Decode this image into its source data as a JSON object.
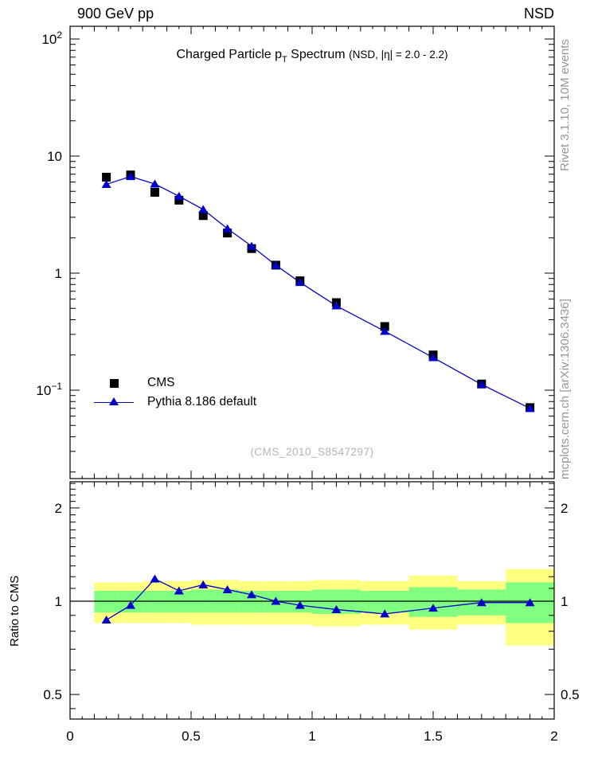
{
  "header": {
    "left": "900 GeV pp",
    "right": "NSD"
  },
  "main_title": {
    "pre": "Charged Particle p",
    "sub": "T",
    "mid": " Spectrum ",
    "paren": "(NSD, |η| = 2.0 - 2.2)"
  },
  "watermark": "(CMS_2010_S8547297)",
  "side_notes": {
    "top_rotated": "Rivet 3.1.10, 10M events",
    "bottom_rotated": "mcplots.cern.ch [arXiv:1306.3436]"
  },
  "legend": {
    "items": [
      {
        "label": "CMS",
        "marker": "filled-square",
        "color": "#000000"
      },
      {
        "label": "Pythia 8.186 default",
        "marker": "triangle-on-line",
        "color": "#0000cc"
      }
    ]
  },
  "ratio_axis_label": "Ratio to CMS",
  "colors": {
    "mc_blue": "#0000cc",
    "data_black": "#000000",
    "band_yellow": "#ffff80",
    "band_green": "#80ff80",
    "gray_text": "#969696",
    "watermark_gray": "#b4b4b4",
    "frame": "#000000"
  },
  "chart_data": [
    {
      "type": "line",
      "panel": "spectrum",
      "title": "Charged Particle pT Spectrum (NSD, |eta| = 2.0 - 2.2)",
      "xlabel": "",
      "ylabel": "",
      "xlim": [
        0,
        2
      ],
      "yscale": "log",
      "ylim": [
        0.0176,
        128
      ],
      "grid": false,
      "legend_position": "left-middle",
      "x": [
        0.15,
        0.25,
        0.35,
        0.45,
        0.55,
        0.65,
        0.75,
        0.85,
        0.95,
        1.1,
        1.3,
        1.5,
        1.7,
        1.9
      ],
      "series": [
        {
          "name": "CMS",
          "marker": "filled-square",
          "color": "#000000",
          "line": false,
          "values": [
            6.6,
            6.9,
            4.9,
            4.2,
            3.1,
            2.2,
            1.62,
            1.17,
            0.86,
            0.56,
            0.35,
            0.2,
            0.113,
            0.071
          ]
        },
        {
          "name": "Pythia 8.186 default",
          "marker": "filled-triangle",
          "color": "#0000cc",
          "line": true,
          "values": [
            5.74,
            6.69,
            5.78,
            4.54,
            3.5,
            2.4,
            1.7,
            1.17,
            0.834,
            0.526,
            0.319,
            0.19,
            0.112,
            0.07
          ]
        }
      ],
      "xticks": [
        {
          "v": 0,
          "label": "0"
        },
        {
          "v": 0.5,
          "label": "0.5"
        },
        {
          "v": 1,
          "label": "1"
        },
        {
          "v": 1.5,
          "label": "1.5"
        },
        {
          "v": 2,
          "label": "2"
        }
      ],
      "yticks": [
        {
          "v": 100,
          "base": "10",
          "sup": "2"
        },
        {
          "v": 10,
          "base": "10",
          "sup": ""
        },
        {
          "v": 1,
          "base": "1",
          "sup": ""
        },
        {
          "v": 0.1,
          "base": "10",
          "sup": "−1"
        }
      ]
    },
    {
      "type": "ratio",
      "panel": "ratio",
      "ylabel": "Ratio to CMS",
      "yscale": "log",
      "ylim": [
        0.417,
        2.4
      ],
      "xlim": [
        0,
        2
      ],
      "reference_line": 1,
      "x": [
        0.15,
        0.25,
        0.35,
        0.45,
        0.55,
        0.65,
        0.75,
        0.85,
        0.95,
        1.1,
        1.3,
        1.5,
        1.7,
        1.9
      ],
      "ratio_values": [
        0.87,
        0.97,
        1.18,
        1.08,
        1.13,
        1.09,
        1.05,
        1.0,
        0.97,
        0.94,
        0.91,
        0.95,
        0.99,
        0.99
      ],
      "band_bin_edges": [
        0.1,
        0.2,
        0.3,
        0.4,
        0.5,
        0.6,
        0.7,
        0.8,
        0.9,
        1.0,
        1.2,
        1.4,
        1.6,
        1.8,
        2.0
      ],
      "yellow_band": [
        [
          0.85,
          1.15
        ],
        [
          0.85,
          1.15
        ],
        [
          0.85,
          1.16
        ],
        [
          0.85,
          1.16
        ],
        [
          0.84,
          1.17
        ],
        [
          0.84,
          1.17
        ],
        [
          0.84,
          1.16
        ],
        [
          0.84,
          1.16
        ],
        [
          0.84,
          1.16
        ],
        [
          0.83,
          1.17
        ],
        [
          0.84,
          1.16
        ],
        [
          0.81,
          1.21
        ],
        [
          0.84,
          1.16
        ],
        [
          0.72,
          1.27
        ]
      ],
      "green_band": [
        [
          0.92,
          1.08
        ],
        [
          0.92,
          1.08
        ],
        [
          0.92,
          1.08
        ],
        [
          0.92,
          1.08
        ],
        [
          0.92,
          1.09
        ],
        [
          0.92,
          1.09
        ],
        [
          0.92,
          1.08
        ],
        [
          0.92,
          1.08
        ],
        [
          0.92,
          1.08
        ],
        [
          0.91,
          1.09
        ],
        [
          0.92,
          1.08
        ],
        [
          0.89,
          1.11
        ],
        [
          0.9,
          1.09
        ],
        [
          0.85,
          1.15
        ]
      ],
      "yticks": [
        {
          "v": 2,
          "label": "2"
        },
        {
          "v": 1,
          "label": "1"
        },
        {
          "v": 0.5,
          "label": "0.5"
        }
      ],
      "xticks": [
        {
          "v": 0,
          "label": "0"
        },
        {
          "v": 0.5,
          "label": "0.5"
        },
        {
          "v": 1,
          "label": "1"
        },
        {
          "v": 1.5,
          "label": "1.5"
        },
        {
          "v": 2,
          "label": "2"
        }
      ]
    }
  ]
}
